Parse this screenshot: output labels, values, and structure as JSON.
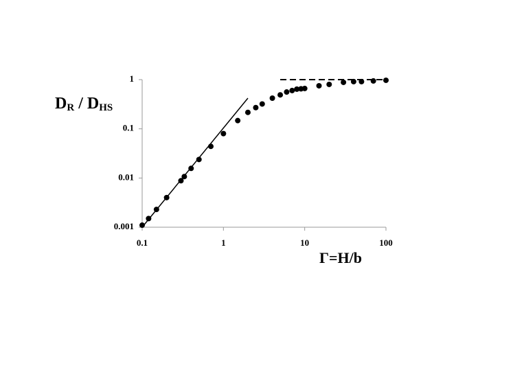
{
  "chart_data": {
    "type": "scatter",
    "xlabel": "Γ=H/b",
    "ylabel_parts": [
      "D",
      "R",
      " / D",
      "HS"
    ],
    "xlog": true,
    "ylog": true,
    "grid": false,
    "xlim": [
      0.1,
      100
    ],
    "ylim": [
      0.001,
      1
    ],
    "xticks": [
      0.1,
      1,
      10,
      100
    ],
    "yticks": [
      0.001,
      0.01,
      0.1,
      1
    ],
    "series": [
      {
        "color": "#000000",
        "x": [
          0.1,
          0.12,
          0.15,
          0.2,
          0.3,
          0.33,
          0.4,
          0.5,
          0.7,
          1,
          1.5,
          2,
          2.5,
          3,
          4,
          5,
          6,
          7,
          8,
          9,
          10,
          15,
          20,
          30,
          40,
          50,
          70,
          100
        ],
        "values": [
          0.0011,
          0.0015,
          0.0023,
          0.004,
          0.0088,
          0.0107,
          0.0157,
          0.0238,
          0.044,
          0.08,
          0.147,
          0.216,
          0.27,
          0.32,
          0.42,
          0.49,
          0.56,
          0.6,
          0.64,
          0.65,
          0.66,
          0.75,
          0.8,
          0.88,
          0.91,
          0.91,
          0.94,
          0.97
        ]
      }
    ],
    "lines": [
      {
        "style": "solid",
        "color": "#000000",
        "x": [
          0.1,
          2
        ],
        "values": [
          0.001,
          0.42
        ]
      },
      {
        "style": "dashed",
        "color": "#000000",
        "x": [
          5,
          100
        ],
        "values": [
          1,
          1
        ]
      }
    ]
  }
}
